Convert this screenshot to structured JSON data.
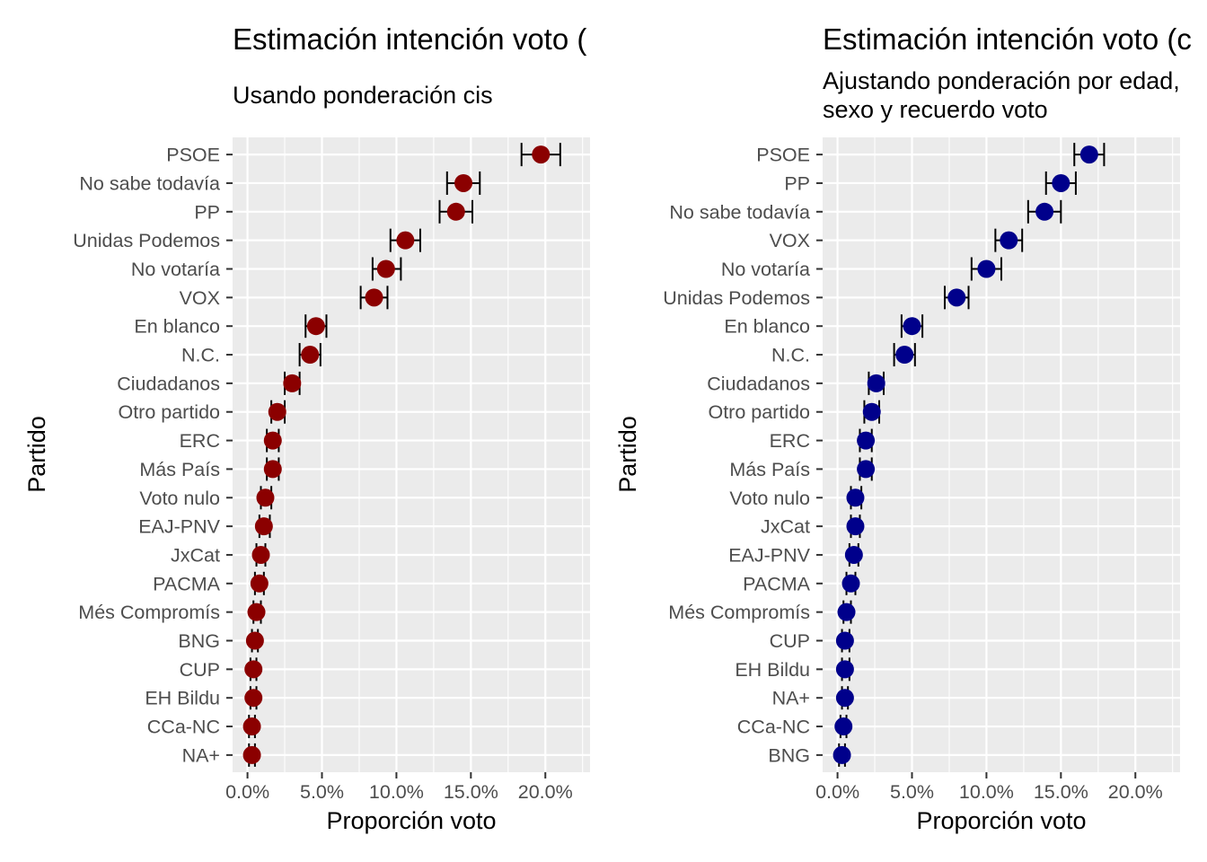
{
  "charts": [
    {
      "title": "Estimación intención voto (",
      "subtitle_lines": [
        "Usando ponderación cis"
      ],
      "xlabel": "Proporción voto",
      "ylabel": "Partido",
      "point_color": "#8b0000"
    },
    {
      "title": "Estimación intención voto (c",
      "subtitle_lines": [
        "Ajustando ponderación por edad,",
        "sexo y recuerdo voto"
      ],
      "xlabel": "Proporción voto",
      "ylabel": "Partido",
      "point_color": "#00008b"
    }
  ],
  "chart_data": [
    {
      "type": "scatter",
      "orientation": "horizontal",
      "xlim": [
        -0.01,
        0.23
      ],
      "x_ticks": [
        0.0,
        0.05,
        0.1,
        0.15,
        0.2
      ],
      "x_tick_labels": [
        "0.0%",
        "5.0%",
        "10.0%",
        "15.0%",
        "20.0%"
      ],
      "error_bars": true,
      "grid": true,
      "points": [
        {
          "party": "PSOE",
          "value": 0.197,
          "low": 0.184,
          "high": 0.21
        },
        {
          "party": "No sabe todavía",
          "value": 0.145,
          "low": 0.134,
          "high": 0.156
        },
        {
          "party": "PP",
          "value": 0.14,
          "low": 0.129,
          "high": 0.151
        },
        {
          "party": "Unidas Podemos",
          "value": 0.106,
          "low": 0.096,
          "high": 0.116
        },
        {
          "party": "No votaría",
          "value": 0.093,
          "low": 0.084,
          "high": 0.103
        },
        {
          "party": "VOX",
          "value": 0.085,
          "low": 0.076,
          "high": 0.094
        },
        {
          "party": "En blanco",
          "value": 0.046,
          "low": 0.039,
          "high": 0.053
        },
        {
          "party": "N.C.",
          "value": 0.042,
          "low": 0.035,
          "high": 0.049
        },
        {
          "party": "Ciudadanos",
          "value": 0.03,
          "low": 0.025,
          "high": 0.035
        },
        {
          "party": "Otro partido",
          "value": 0.02,
          "low": 0.016,
          "high": 0.025
        },
        {
          "party": "ERC",
          "value": 0.017,
          "low": 0.013,
          "high": 0.021
        },
        {
          "party": "Más País",
          "value": 0.017,
          "low": 0.013,
          "high": 0.021
        },
        {
          "party": "Voto nulo",
          "value": 0.012,
          "low": 0.009,
          "high": 0.016
        },
        {
          "party": "EAJ-PNV",
          "value": 0.011,
          "low": 0.008,
          "high": 0.015
        },
        {
          "party": "JxCat",
          "value": 0.009,
          "low": 0.006,
          "high": 0.012
        },
        {
          "party": "PACMA",
          "value": 0.008,
          "low": 0.005,
          "high": 0.011
        },
        {
          "party": "Més Compromís",
          "value": 0.006,
          "low": 0.004,
          "high": 0.009
        },
        {
          "party": "BNG",
          "value": 0.005,
          "low": 0.003,
          "high": 0.007
        },
        {
          "party": "CUP",
          "value": 0.004,
          "low": 0.002,
          "high": 0.006
        },
        {
          "party": "EH Bildu",
          "value": 0.004,
          "low": 0.002,
          "high": 0.006
        },
        {
          "party": "CCa-NC",
          "value": 0.003,
          "low": 0.001,
          "high": 0.005
        },
        {
          "party": "NA+",
          "value": 0.003,
          "low": 0.001,
          "high": 0.005
        }
      ]
    },
    {
      "type": "scatter",
      "orientation": "horizontal",
      "xlim": [
        -0.01,
        0.23
      ],
      "x_ticks": [
        0.0,
        0.05,
        0.1,
        0.15,
        0.2
      ],
      "x_tick_labels": [
        "0.0%",
        "5.0%",
        "10.0%",
        "15.0%",
        "20.0%"
      ],
      "error_bars": true,
      "grid": true,
      "points": [
        {
          "party": "PSOE",
          "value": 0.169,
          "low": 0.159,
          "high": 0.179
        },
        {
          "party": "PP",
          "value": 0.15,
          "low": 0.14,
          "high": 0.16
        },
        {
          "party": "No sabe todavía",
          "value": 0.139,
          "low": 0.128,
          "high": 0.15
        },
        {
          "party": "VOX",
          "value": 0.115,
          "low": 0.106,
          "high": 0.124
        },
        {
          "party": "No votaría",
          "value": 0.1,
          "low": 0.09,
          "high": 0.11
        },
        {
          "party": "Unidas Podemos",
          "value": 0.08,
          "low": 0.072,
          "high": 0.088
        },
        {
          "party": "En blanco",
          "value": 0.05,
          "low": 0.043,
          "high": 0.057
        },
        {
          "party": "N.C.",
          "value": 0.045,
          "low": 0.038,
          "high": 0.052
        },
        {
          "party": "Ciudadanos",
          "value": 0.026,
          "low": 0.021,
          "high": 0.031
        },
        {
          "party": "Otro partido",
          "value": 0.023,
          "low": 0.018,
          "high": 0.028
        },
        {
          "party": "ERC",
          "value": 0.019,
          "low": 0.015,
          "high": 0.023
        },
        {
          "party": "Más País",
          "value": 0.019,
          "low": 0.015,
          "high": 0.023
        },
        {
          "party": "Voto nulo",
          "value": 0.012,
          "low": 0.009,
          "high": 0.016
        },
        {
          "party": "JxCat",
          "value": 0.012,
          "low": 0.009,
          "high": 0.015
        },
        {
          "party": "EAJ-PNV",
          "value": 0.011,
          "low": 0.008,
          "high": 0.014
        },
        {
          "party": "PACMA",
          "value": 0.009,
          "low": 0.006,
          "high": 0.012
        },
        {
          "party": "Més Compromís",
          "value": 0.006,
          "low": 0.004,
          "high": 0.009
        },
        {
          "party": "CUP",
          "value": 0.005,
          "low": 0.003,
          "high": 0.008
        },
        {
          "party": "EH Bildu",
          "value": 0.005,
          "low": 0.003,
          "high": 0.008
        },
        {
          "party": "NA+",
          "value": 0.005,
          "low": 0.003,
          "high": 0.007
        },
        {
          "party": "CCa-NC",
          "value": 0.004,
          "low": 0.002,
          "high": 0.006
        },
        {
          "party": "BNG",
          "value": 0.003,
          "low": 0.001,
          "high": 0.005
        }
      ]
    }
  ]
}
